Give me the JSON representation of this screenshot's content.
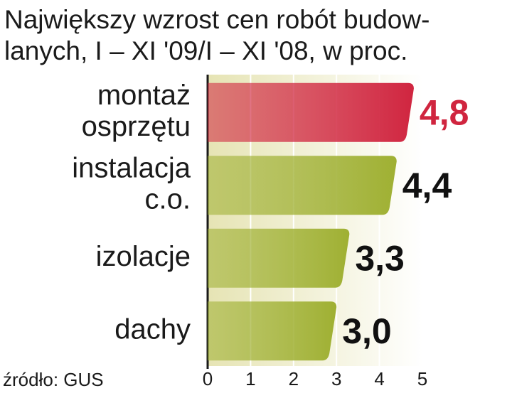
{
  "chart_data": {
    "type": "bar",
    "title": [
      "Największy wzrost cen robót budow-",
      "lanych, I – XI '09/I – XI '08, w proc."
    ],
    "categories": [
      [
        "montaż",
        "osprzętu"
      ],
      [
        "instalacja",
        "c.o."
      ],
      [
        "izolacje"
      ],
      [
        "dachy"
      ]
    ],
    "values": [
      4.8,
      4.4,
      3.3,
      3.0
    ],
    "value_labels": [
      "4,8",
      "4,4",
      "3,3",
      "3,0"
    ],
    "colors": [
      "#d0253f",
      "#9fb032",
      "#9fb032",
      "#9fb032"
    ],
    "highlight_index": 0,
    "xlim": [
      0,
      5
    ],
    "xticks": [
      0,
      1,
      2,
      3,
      4,
      5
    ],
    "grid": true,
    "source": "źródło: GUS"
  }
}
